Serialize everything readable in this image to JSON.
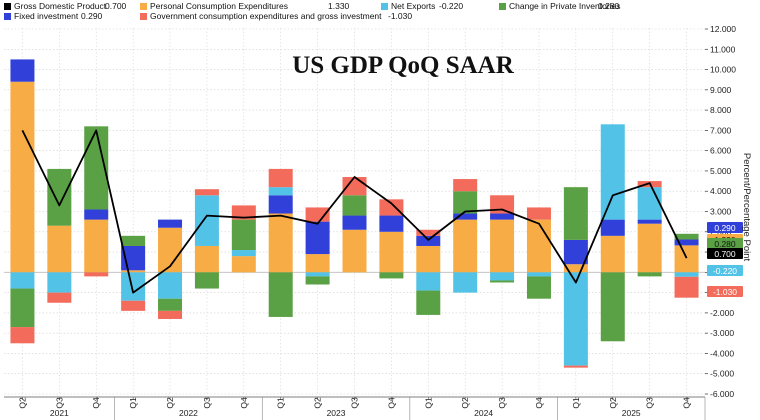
{
  "chart_data": {
    "type": "bar",
    "title": "US GDP QoQ SAAR",
    "ylabel": "Percent/Percentage Point",
    "ylim": [
      -6,
      12
    ],
    "yticks": [
      "-6.000",
      "-5.000",
      "-4.000",
      "-3.000",
      "-2.000",
      "-1.000",
      "0.000",
      "1.000",
      "2.000",
      "3.000",
      "4.000",
      "5.000",
      "6.000",
      "7.000",
      "8.000",
      "9.000",
      "10.000",
      "11.000",
      "12.000"
    ],
    "grid": true,
    "legend_position": "top-left",
    "legend": [
      {
        "key": "gdp",
        "label": "Gross Domestic Product",
        "value": "0.700"
      },
      {
        "key": "fixed",
        "label": "Fixed investment",
        "value": "0.290"
      },
      {
        "key": "pce",
        "label": "Personal Consumption Expenditures",
        "value": "1.330"
      },
      {
        "key": "gov",
        "label": "Government consumption expenditures and gross investment",
        "value": "-1.030"
      },
      {
        "key": "netx",
        "label": "Net Exports",
        "value": "-0.220"
      },
      {
        "key": "inv",
        "label": "Change in Private Inventories",
        "value": "0.280"
      }
    ],
    "categories": [
      "Q2",
      "Q3",
      "Q4",
      "Q1",
      "Q2",
      "Q3",
      "Q4",
      "Q1",
      "Q2",
      "Q3",
      "Q4",
      "Q1",
      "Q2",
      "Q3",
      "Q4",
      "Q1",
      "Q2",
      "Q3",
      "Q4"
    ],
    "year_labels": [
      {
        "label": "2021",
        "start": 0,
        "end": 2
      },
      {
        "label": "2022",
        "start": 3,
        "end": 6
      },
      {
        "label": "2023",
        "start": 7,
        "end": 10
      },
      {
        "label": "2024",
        "start": 11,
        "end": 14
      },
      {
        "label": "2025",
        "start": 15,
        "end": 18
      }
    ],
    "colors": {
      "gdp": "#000000",
      "fixed": "#3040d8",
      "pce": "#f8ac46",
      "gov": "#f26b5b",
      "netx": "#52c3e6",
      "inv": "#5aa044"
    },
    "series": [
      {
        "key": "gdp",
        "type": "line",
        "values": [
          7.0,
          3.3,
          7.0,
          -1.0,
          0.3,
          2.8,
          2.7,
          2.8,
          2.4,
          4.7,
          3.4,
          1.6,
          3.0,
          3.1,
          2.4,
          -0.5,
          3.8,
          4.4,
          0.7
        ]
      },
      {
        "key": "pce",
        "type": "bar",
        "values": [
          9.4,
          2.3,
          2.6,
          0.1,
          2.2,
          1.3,
          0.8,
          2.9,
          0.9,
          2.1,
          2.0,
          1.3,
          2.6,
          2.6,
          2.6,
          0.4,
          1.8,
          2.4,
          1.33
        ]
      },
      {
        "key": "fixed",
        "type": "bar",
        "values": [
          1.1,
          0.0,
          0.5,
          1.2,
          0.4,
          0.0,
          0.0,
          0.9,
          1.6,
          0.7,
          0.8,
          0.5,
          0.3,
          0.3,
          0.0,
          1.2,
          0.8,
          0.2,
          0.29
        ]
      },
      {
        "key": "netx",
        "type": "bar",
        "values": [
          -0.8,
          -1.0,
          0.0,
          -1.4,
          -1.3,
          2.5,
          0.3,
          0.4,
          -0.2,
          0.0,
          0.0,
          -0.9,
          -1.0,
          -0.4,
          -0.2,
          -4.6,
          4.7,
          1.6,
          -0.22
        ]
      },
      {
        "key": "inv",
        "type": "bar",
        "values": [
          -1.9,
          2.8,
          4.1,
          0.5,
          -0.6,
          -0.8,
          1.5,
          -2.2,
          -0.4,
          1.0,
          -0.3,
          -1.2,
          1.1,
          -0.1,
          -1.1,
          2.6,
          -3.4,
          -0.2,
          0.28
        ]
      },
      {
        "key": "gov",
        "type": "bar",
        "values": [
          -0.8,
          -0.5,
          -0.2,
          -0.5,
          -0.4,
          0.3,
          0.7,
          0.9,
          0.7,
          0.9,
          0.8,
          0.3,
          0.6,
          0.9,
          0.6,
          -0.1,
          0.0,
          0.3,
          -1.03
        ]
      }
    ],
    "right_axis_badges": [
      {
        "key": "fixed",
        "text": "0.290"
      },
      {
        "key": "pce",
        "text": "1.330"
      },
      {
        "key": "inv",
        "text": "0.280"
      },
      {
        "key": "gdp",
        "text": "0.700"
      },
      {
        "key": "netx",
        "text": "-0.220"
      },
      {
        "key": "gov",
        "text": "-1.030"
      }
    ]
  }
}
